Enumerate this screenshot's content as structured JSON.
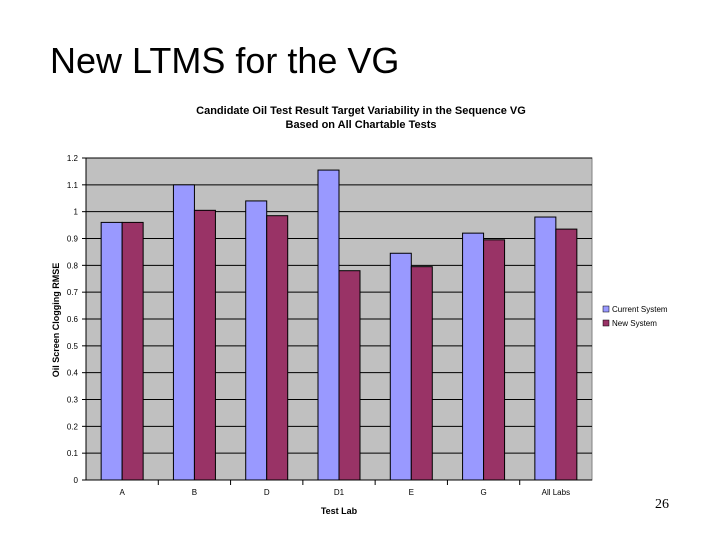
{
  "slide": {
    "title": "New LTMS for the VG",
    "page_number": "26"
  },
  "colors": {
    "plot_background": "#c0c0c0",
    "current_system": "#9999ff",
    "new_system": "#993366",
    "gridline": "#000000"
  },
  "chart_data": {
    "type": "bar",
    "title": "Candidate Oil Test Result Target Variability in the Sequence VG",
    "subtitle": "Based on All Chartable Tests",
    "xlabel": "Test Lab",
    "ylabel": "Oil Screen Clogging RMSE",
    "categories": [
      "A",
      "B",
      "D",
      "D1",
      "E",
      "G",
      "All Labs"
    ],
    "series": [
      {
        "name": "Current System",
        "color": "#9999ff",
        "values": [
          0.96,
          1.1,
          1.04,
          1.155,
          0.845,
          0.92,
          0.98
        ]
      },
      {
        "name": "New System",
        "color": "#993366",
        "values": [
          0.96,
          1.005,
          0.985,
          0.78,
          0.795,
          0.895,
          0.935
        ]
      }
    ],
    "ylim": [
      0,
      1.2
    ],
    "yticks": [
      "0",
      "0.1",
      "0.2",
      "0.3",
      "0.4",
      "0.5",
      "0.6",
      "0.7",
      "0.8",
      "0.9",
      "1",
      "1.1",
      "1.2"
    ],
    "grid": true,
    "legend_position": "right"
  }
}
